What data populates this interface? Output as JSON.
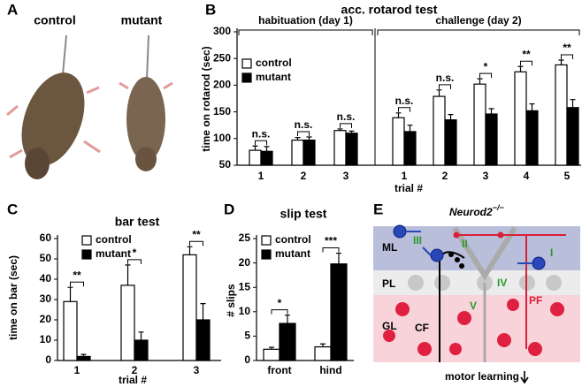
{
  "panel_letters": [
    "A",
    "B",
    "C",
    "D",
    "E"
  ],
  "photo": {
    "labels": [
      "control",
      "mutant"
    ]
  },
  "chart_data": [
    {
      "type": "bar",
      "title": "acc. rotarod test",
      "xlabel": "trial #",
      "ylabel": "time on rotarod (sec)",
      "groups": [
        "habituation (day 1)",
        "challenge (day 2)"
      ],
      "categories": [
        "1",
        "2",
        "3",
        "1",
        "2",
        "3",
        "4",
        "5"
      ],
      "series": [
        {
          "name": "control",
          "color": "#ffffff",
          "values": [
            78,
            97,
            115,
            139,
            179,
            202,
            225,
            238
          ],
          "errors": [
            8,
            5,
            3,
            9,
            12,
            10,
            10,
            9
          ]
        },
        {
          "name": "mutant",
          "color": "#000000",
          "values": [
            76,
            97,
            110,
            113,
            135,
            146,
            152,
            158
          ],
          "errors": [
            9,
            6,
            4,
            12,
            10,
            10,
            13,
            15
          ]
        }
      ],
      "significance": [
        "n.s.",
        "n.s.",
        "n.s.",
        "n.s.",
        "n.s.",
        "*",
        "**",
        "**"
      ],
      "ylim": [
        50,
        300
      ],
      "yticks": [
        50,
        100,
        150,
        200,
        250,
        300
      ],
      "legend": "upper left"
    },
    {
      "type": "bar",
      "title": "bar test",
      "xlabel": "trial #",
      "ylabel": "time on bar (sec)",
      "categories": [
        "1",
        "2",
        "3"
      ],
      "series": [
        {
          "name": "control",
          "color": "#ffffff",
          "values": [
            29,
            37,
            52
          ],
          "errors": [
            7,
            10,
            4
          ]
        },
        {
          "name": "mutant",
          "color": "#000000",
          "values": [
            2,
            10,
            20
          ],
          "errors": [
            1,
            4,
            8
          ]
        }
      ],
      "significance": [
        "**",
        "*",
        "**"
      ],
      "ylim": [
        0,
        60
      ],
      "yticks": [
        0,
        10,
        20,
        30,
        40,
        50,
        60
      ],
      "legend": "upper left"
    },
    {
      "type": "bar",
      "title": "slip test",
      "ylabel": "# slips",
      "categories": [
        "front",
        "hind"
      ],
      "series": [
        {
          "name": "control",
          "color": "#ffffff",
          "values": [
            2.3,
            2.8
          ],
          "errors": [
            0.4,
            0.6
          ]
        },
        {
          "name": "mutant",
          "color": "#000000",
          "values": [
            7.6,
            19.8
          ],
          "errors": [
            1.7,
            2.2
          ]
        }
      ],
      "significance": [
        "*",
        "***"
      ],
      "ylim": [
        0,
        25
      ],
      "yticks": [
        0,
        5,
        10,
        15,
        20,
        25
      ],
      "legend": "upper left"
    }
  ],
  "diagram": {
    "title": "Neurod2",
    "superscript": "−/−",
    "layers": [
      "ML",
      "PL",
      "GL"
    ],
    "numerals": [
      "I",
      "II",
      "III",
      "IV",
      "V"
    ],
    "fibers": [
      "CF",
      "PF"
    ],
    "footer": "motor learning"
  }
}
